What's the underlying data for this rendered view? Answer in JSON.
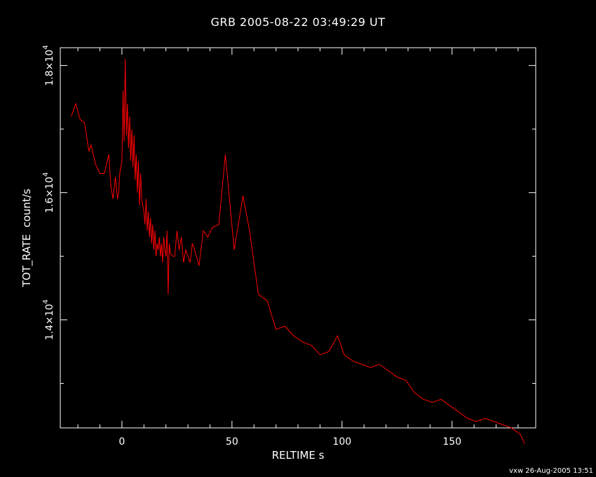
{
  "chart_data": {
    "type": "line",
    "title": "GRB 2005-08-22 03:49:29 UT",
    "xlabel": "RELTIME  s",
    "ylabel": "TOT_RATE  count/s",
    "xlim": [
      -28,
      188
    ],
    "ylim": [
      12300,
      18280
    ],
    "x_ticks": [
      0,
      50,
      100,
      150
    ],
    "x_tick_labels": [
      "0",
      "50",
      "100",
      "150"
    ],
    "y_ticks": [
      14000,
      16000,
      18000
    ],
    "y_tick_labels": [
      "1.4×10",
      "1.6×10",
      "1.8×10"
    ],
    "y_tick_exponent": "4",
    "grid": false,
    "series": [
      {
        "color": "#ff0000",
        "x": [
          -23,
          -21,
          -19,
          -17,
          -15,
          -14,
          -12,
          -10,
          -8,
          -6,
          -5,
          -4,
          -3,
          -2,
          -1.5,
          -1,
          0,
          0.5,
          1,
          1.5,
          2,
          2.5,
          3,
          3.5,
          4,
          4.5,
          5,
          5.5,
          6,
          6.5,
          7,
          7.5,
          8,
          8.5,
          9,
          9.5,
          10,
          10.5,
          11,
          11.5,
          12,
          12.5,
          13,
          13.5,
          14,
          14.5,
          15,
          15.5,
          16,
          16.5,
          17,
          17.5,
          18,
          18.5,
          19,
          19.5,
          20,
          20.5,
          21,
          21.5,
          22,
          23,
          24,
          25,
          26,
          27,
          28,
          29,
          30,
          31,
          32,
          33,
          35,
          37,
          39,
          41,
          44,
          47,
          51,
          55,
          58,
          62,
          66,
          70,
          74,
          78,
          82,
          86,
          90,
          94,
          98,
          101,
          105,
          109,
          113,
          117,
          121,
          125,
          129,
          133,
          137,
          141,
          145,
          149,
          153,
          157,
          161,
          165,
          169,
          173,
          177,
          181,
          183
        ],
        "y": [
          17200,
          17400,
          17150,
          17100,
          16650,
          16750,
          16450,
          16300,
          16300,
          16600,
          16100,
          15900,
          16250,
          15900,
          16000,
          16300,
          16500,
          17600,
          16800,
          18100,
          16900,
          17400,
          16700,
          17200,
          16500,
          17000,
          16400,
          16900,
          16200,
          16600,
          16000,
          16500,
          15800,
          16300,
          15900,
          15800,
          15700,
          15500,
          15900,
          15400,
          15700,
          15300,
          15600,
          15200,
          15500,
          15100,
          15400,
          15000,
          15200,
          15100,
          15300,
          15000,
          15200,
          14900,
          15300,
          15100,
          15000,
          15400,
          14400,
          15200,
          15050,
          15000,
          15000,
          15400,
          15100,
          15300,
          14900,
          15100,
          15000,
          14900,
          15200,
          15100,
          14850,
          15400,
          15300,
          15450,
          15500,
          16600,
          15100,
          15950,
          15400,
          14400,
          14300,
          13850,
          13900,
          13750,
          13650,
          13600,
          13450,
          13500,
          13750,
          13450,
          13350,
          13300,
          13250,
          13300,
          13200,
          13100,
          13050,
          12850,
          12750,
          12700,
          12750,
          12650,
          12550,
          12450,
          12400,
          12450,
          12400,
          12350,
          12300,
          12200,
          12050
        ]
      }
    ]
  },
  "footer": "vxw 26-Aug-2005 13:51"
}
